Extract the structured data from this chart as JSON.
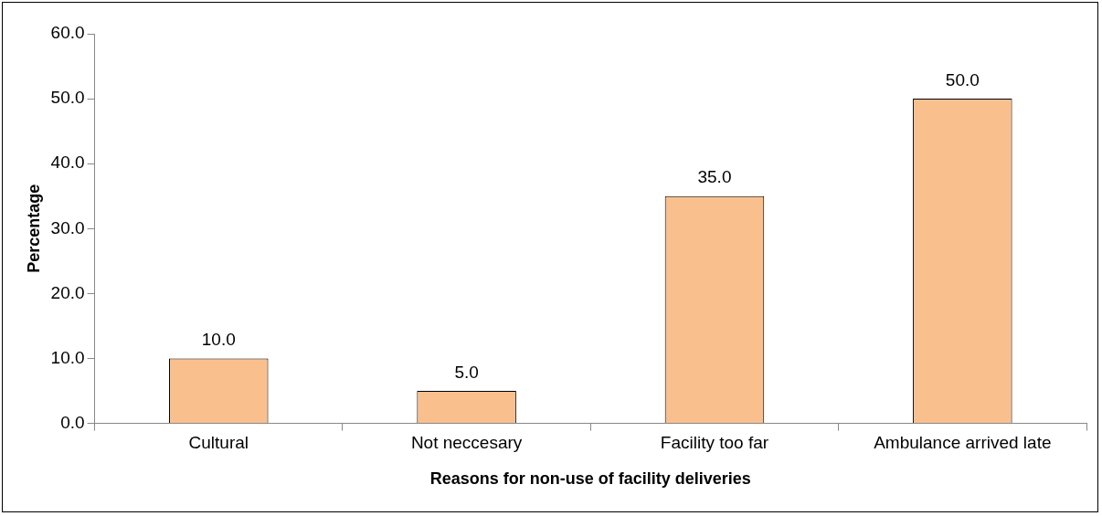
{
  "chart_data": {
    "type": "bar",
    "xlabel": "Reasons for non-use of facility deliveries",
    "ylabel": "Percentage",
    "categories": [
      "Cultural",
      "Not neccesary",
      "Facility too far",
      "Ambulance arrived late"
    ],
    "values": [
      10,
      5,
      35,
      50
    ],
    "value_labels": [
      "10.0",
      "5.0",
      "35.0",
      "50.0"
    ],
    "color": "#f9c08e",
    "ylim": [
      0,
      60
    ],
    "yticks": [
      {
        "value": 0,
        "label": "0.0"
      },
      {
        "value": 10,
        "label": "10.0"
      },
      {
        "value": 20,
        "label": "20.0"
      },
      {
        "value": 30,
        "label": "30.0"
      },
      {
        "value": 40,
        "label": "40.0"
      },
      {
        "value": 50,
        "label": "50.0"
      },
      {
        "value": 60,
        "label": "60.0"
      }
    ],
    "grid": false,
    "legend": false
  }
}
